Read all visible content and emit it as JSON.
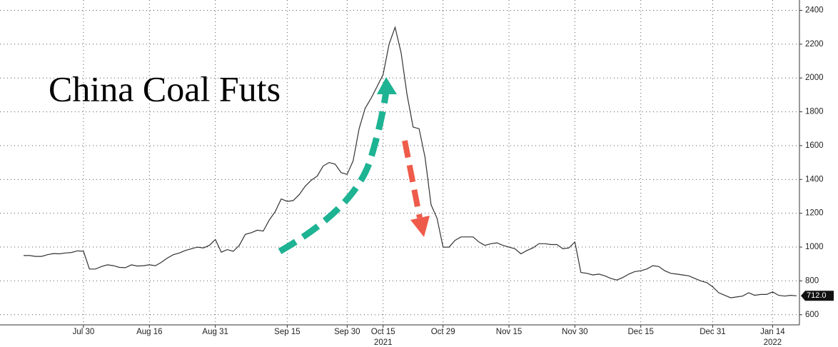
{
  "chart_data": {
    "type": "line",
    "annotation": "China Coal Futs",
    "categories": [
      null,
      null,
      null,
      null,
      null,
      null,
      null,
      null,
      null,
      null,
      "Jul 30",
      null,
      null,
      null,
      null,
      null,
      null,
      null,
      null,
      null,
      null,
      "Aug 16",
      null,
      null,
      null,
      null,
      null,
      null,
      null,
      null,
      null,
      null,
      "Aug 31",
      null,
      null,
      null,
      null,
      null,
      null,
      null,
      null,
      null,
      null,
      null,
      "Sep 15",
      null,
      null,
      null,
      null,
      null,
      null,
      null,
      null,
      null,
      "Sep 30",
      null,
      null,
      null,
      null,
      null,
      "Oct 15",
      null,
      null,
      null,
      null,
      null,
      null,
      null,
      null,
      null,
      "Oct 29",
      null,
      null,
      null,
      null,
      null,
      null,
      null,
      null,
      null,
      null,
      "Nov 15",
      null,
      null,
      null,
      null,
      null,
      null,
      null,
      null,
      null,
      null,
      "Nov 30",
      null,
      null,
      null,
      null,
      null,
      null,
      null,
      null,
      null,
      null,
      "Dec 15",
      null,
      null,
      null,
      null,
      null,
      null,
      null,
      null,
      null,
      null,
      null,
      "Dec 31",
      null,
      null,
      null,
      null,
      null,
      null,
      null,
      null,
      null,
      "Jan 14",
      null,
      null,
      null,
      null
    ],
    "year_labels": [
      {
        "text": "2021",
        "category": "Oct 15"
      },
      {
        "text": "2022",
        "category": "Jan 14"
      }
    ],
    "values": [
      950,
      950,
      945,
      945,
      955,
      962,
      960,
      965,
      968,
      978,
      975,
      870,
      870,
      885,
      895,
      890,
      880,
      878,
      895,
      888,
      890,
      895,
      890,
      910,
      935,
      955,
      965,
      980,
      990,
      1000,
      995,
      1010,
      1045,
      970,
      985,
      975,
      1010,
      1075,
      1085,
      1100,
      1095,
      1160,
      1210,
      1285,
      1270,
      1275,
      1310,
      1360,
      1395,
      1420,
      1480,
      1500,
      1490,
      1440,
      1430,
      1510,
      1700,
      1820,
      1880,
      1950,
      2020,
      2200,
      2300,
      2150,
      1900,
      1710,
      1700,
      1530,
      1250,
      1170,
      1000,
      1000,
      1040,
      1060,
      1060,
      1060,
      1030,
      1010,
      1020,
      1025,
      1010,
      1000,
      990,
      960,
      980,
      995,
      1020,
      1020,
      1015,
      1015,
      990,
      995,
      1030,
      850,
      845,
      835,
      840,
      830,
      815,
      805,
      820,
      840,
      855,
      860,
      870,
      890,
      885,
      860,
      845,
      840,
      835,
      830,
      815,
      800,
      790,
      765,
      730,
      715,
      700,
      705,
      710,
      730,
      715,
      720,
      720,
      735,
      715,
      710,
      715,
      712
    ],
    "value_labels": [
      null,
      null,
      null,
      null,
      null,
      null,
      null,
      null,
      null,
      null,
      null,
      null,
      null,
      null,
      null,
      null,
      null,
      null,
      null,
      null,
      null,
      null,
      null,
      null,
      null,
      null,
      null,
      null,
      null,
      null,
      null,
      null,
      null,
      null,
      null,
      null,
      null,
      null,
      null,
      null,
      null,
      null,
      null,
      null,
      null,
      null,
      null,
      null,
      null,
      null,
      null,
      null,
      null,
      null,
      null,
      null,
      null,
      null,
      null,
      null,
      null,
      null,
      null,
      null,
      null,
      null,
      null,
      null,
      null,
      null,
      null,
      null,
      null,
      null,
      null,
      null,
      null,
      null,
      null,
      null,
      null,
      null,
      null,
      null,
      null,
      null,
      null,
      null,
      null,
      null,
      null,
      null,
      null,
      null,
      null,
      null,
      null,
      null,
      null,
      null,
      null,
      null,
      null,
      null,
      null,
      null,
      null,
      null,
      null,
      null,
      null,
      null,
      null,
      null,
      null,
      null,
      null,
      null,
      null,
      null,
      null,
      null,
      null,
      null,
      null,
      null,
      null,
      null,
      null,
      "712.0"
    ],
    "color": "#333333",
    "ylim": [
      540,
      2440
    ],
    "yticks": [
      600,
      800,
      1000,
      1200,
      1400,
      1600,
      1800,
      2000,
      2200,
      2400
    ],
    "grid": true
  }
}
